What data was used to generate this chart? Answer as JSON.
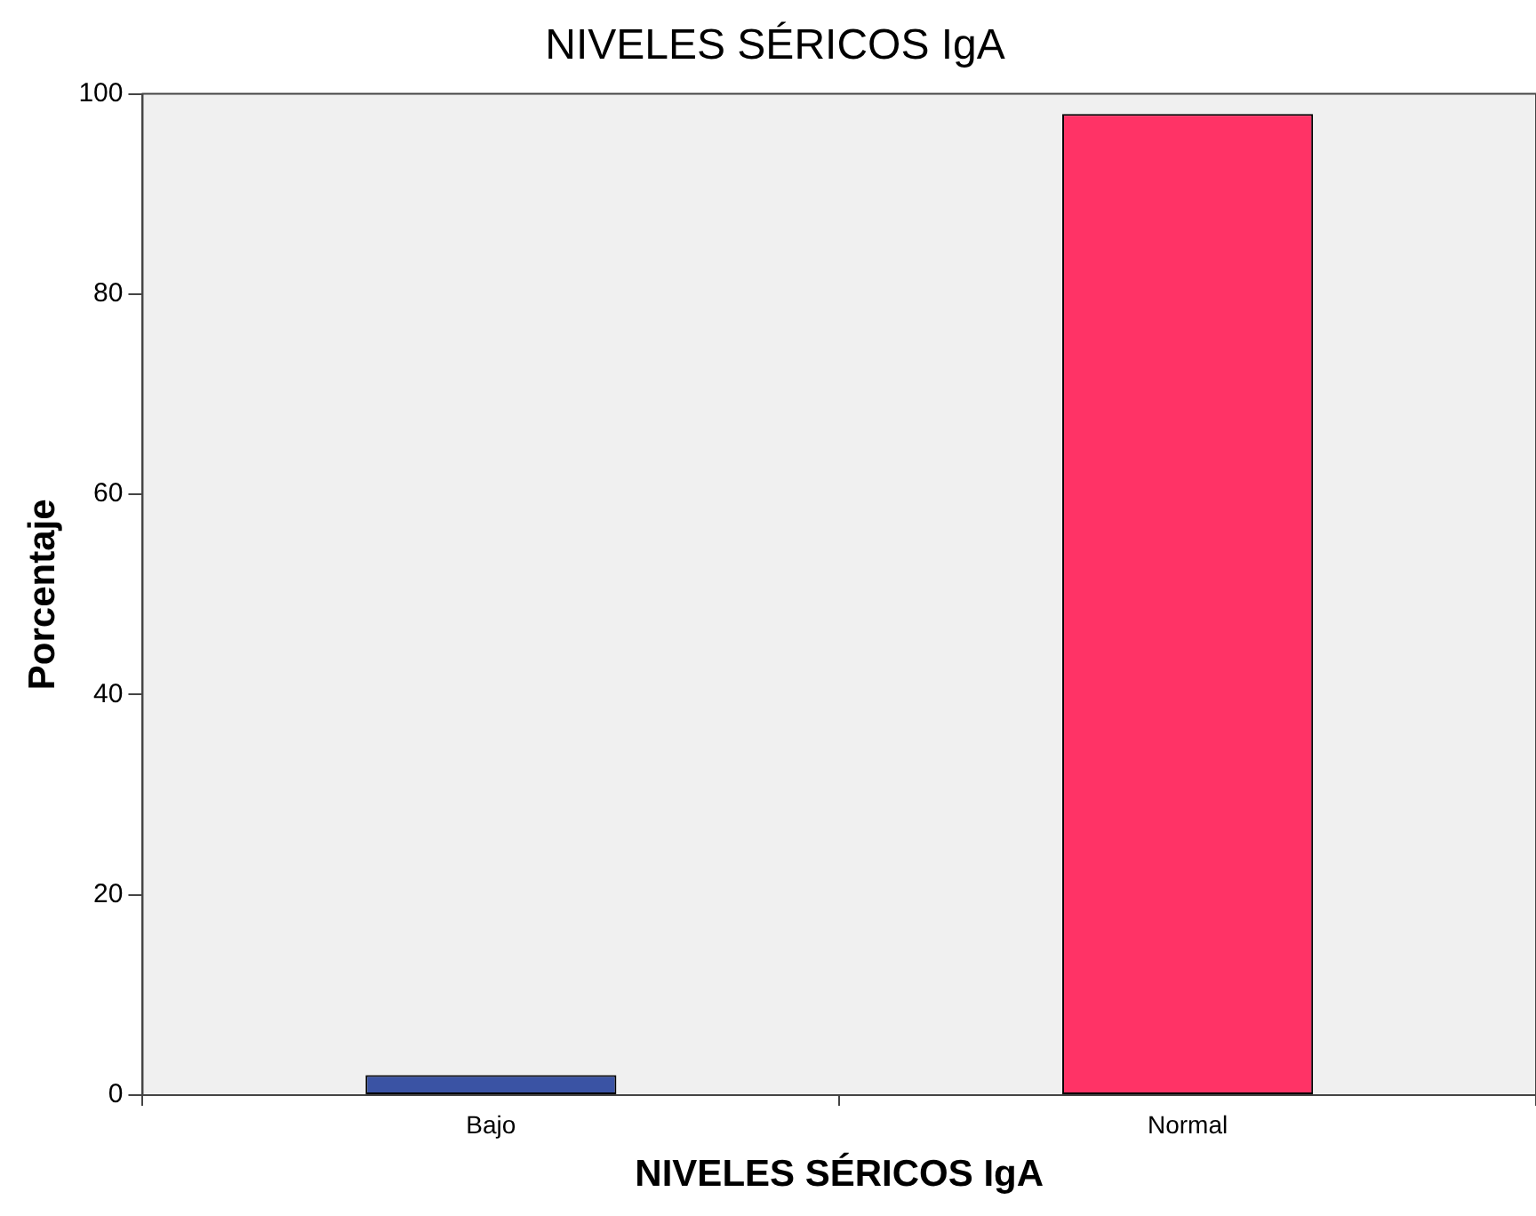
{
  "chart_data": {
    "type": "bar",
    "title": "NIVELES SÉRICOS IgA",
    "xlabel": "NIVELES SÉRICOS IgA",
    "ylabel": "Porcentaje",
    "categories": [
      "Bajo",
      "Normal"
    ],
    "values": [
      2,
      98
    ],
    "colors": [
      "#3a53a4",
      "#ff3366"
    ],
    "ylim": [
      0,
      100
    ],
    "yticks": [
      0,
      20,
      40,
      60,
      80,
      100
    ],
    "grid": false,
    "legend": false
  }
}
